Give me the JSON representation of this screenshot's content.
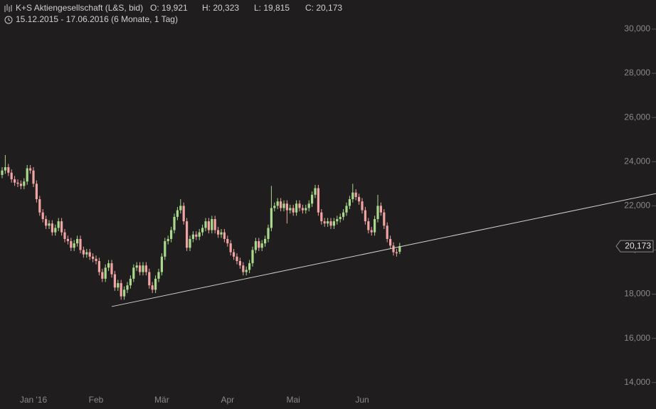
{
  "chart_data": {
    "type": "candlestick",
    "title": "K+S Aktiengesellschaft (L&S, bid)",
    "ohlc_labels": [
      "O: 19,921",
      "H: 20,323",
      "L: 19,815",
      "C: 20,173"
    ],
    "subtitle": "15.12.2015 - 17.06.2016 (6 Monate, 1 Tag)",
    "categories": [
      null,
      null,
      null,
      null,
      null,
      null,
      null,
      null,
      null,
      null,
      "Jan '16",
      null,
      null,
      null,
      null,
      null,
      null,
      null,
      null,
      null,
      null,
      null,
      null,
      null,
      null,
      null,
      null,
      null,
      null,
      null,
      "Feb",
      null,
      null,
      null,
      null,
      null,
      null,
      null,
      null,
      null,
      null,
      null,
      null,
      null,
      null,
      null,
      null,
      null,
      null,
      null,
      null,
      "Mär",
      null,
      null,
      null,
      null,
      null,
      null,
      null,
      null,
      null,
      null,
      null,
      null,
      null,
      null,
      null,
      null,
      null,
      null,
      null,
      null,
      "Apr",
      null,
      null,
      null,
      null,
      null,
      null,
      null,
      null,
      null,
      null,
      null,
      null,
      null,
      null,
      null,
      null,
      null,
      null,
      null,
      null,
      "Mai",
      null,
      null,
      null,
      null,
      null,
      null,
      null,
      null,
      null,
      null,
      null,
      null,
      null,
      null,
      null,
      null,
      null,
      null,
      null,
      null,
      null,
      "Jun",
      null,
      null,
      null,
      null,
      null,
      null,
      null,
      null,
      null,
      null,
      null,
      null
    ],
    "open": [
      23400,
      23600,
      23750,
      23500,
      23200,
      23050,
      23000,
      22900,
      23100,
      23700,
      23600,
      23000,
      22300,
      21700,
      21400,
      21100,
      21200,
      20800,
      21000,
      21300,
      20800,
      20500,
      20400,
      20100,
      20300,
      20500,
      20000,
      19800,
      19900,
      19700,
      19600,
      19500,
      19000,
      18700,
      19200,
      19400,
      18900,
      18300,
      18500,
      17900,
      18200,
      18400,
      18700,
      19200,
      19300,
      19000,
      19300,
      19000,
      18400,
      18200,
      18700,
      19000,
      19700,
      20400,
      20500,
      20900,
      21500,
      21800,
      22000,
      21300,
      20100,
      20500,
      20700,
      20600,
      20800,
      21000,
      21300,
      20900,
      21400,
      20900,
      20700,
      20800,
      20500,
      20300,
      19900,
      19700,
      19500,
      19300,
      19000,
      19100,
      19400,
      20000,
      20400,
      20100,
      20300,
      20500,
      21000,
      21900,
      22000,
      22200,
      21900,
      22100,
      21800,
      21900,
      21700,
      22100,
      21900,
      21800,
      21900,
      22100,
      22500,
      22800,
      21700,
      21300,
      21200,
      21300,
      21100,
      21300,
      21400,
      21500,
      21700,
      22000,
      22300,
      22600,
      22400,
      22200,
      21800,
      21300,
      20900,
      20800,
      21400,
      22000,
      21700,
      21100,
      20500,
      20200,
      19900,
      19921
    ],
    "high": [
      23750,
      24300,
      23900,
      23650,
      23350,
      23200,
      23150,
      23250,
      23850,
      23850,
      23750,
      23150,
      22450,
      21850,
      21550,
      21350,
      21350,
      21150,
      21450,
      21450,
      20950,
      20650,
      20550,
      20450,
      20650,
      20650,
      20150,
      20050,
      20050,
      19850,
      19750,
      19650,
      19150,
      19350,
      19550,
      19550,
      19050,
      18650,
      18650,
      18350,
      18550,
      18850,
      19350,
      19450,
      19450,
      19450,
      19450,
      19150,
      18550,
      18850,
      19150,
      19850,
      20550,
      20650,
      21050,
      21650,
      21950,
      22300,
      22150,
      21450,
      20650,
      20850,
      20850,
      20950,
      21150,
      21450,
      21450,
      21550,
      21550,
      21050,
      20950,
      20950,
      20650,
      20450,
      20050,
      19850,
      19650,
      19450,
      19250,
      19550,
      20150,
      20550,
      20550,
      20450,
      20650,
      21150,
      22900,
      22150,
      22350,
      22350,
      22250,
      22250,
      22050,
      22050,
      22250,
      22250,
      22050,
      22050,
      22250,
      22650,
      22950,
      22950,
      21850,
      21450,
      21450,
      21450,
      21450,
      21550,
      21650,
      21850,
      22150,
      22450,
      23000,
      22750,
      22550,
      22350,
      21950,
      21450,
      21050,
      21550,
      22500,
      22150,
      21850,
      21250,
      20650,
      20350,
      20050,
      20323
    ],
    "low": [
      23250,
      23450,
      23350,
      23050,
      22900,
      22850,
      22750,
      22750,
      22950,
      23450,
      22850,
      22150,
      21550,
      21250,
      20950,
      20950,
      20650,
      20650,
      20850,
      20650,
      20350,
      20250,
      19950,
      19950,
      20150,
      19850,
      19650,
      19650,
      19550,
      19450,
      19350,
      18850,
      18550,
      18550,
      19050,
      18750,
      18150,
      18150,
      17750,
      17750,
      18050,
      18250,
      18550,
      19050,
      18850,
      18850,
      18850,
      18250,
      18050,
      18050,
      18550,
      18850,
      19550,
      20250,
      20350,
      20750,
      21350,
      21650,
      21150,
      19950,
      19950,
      20350,
      20450,
      20450,
      20650,
      20850,
      20750,
      20750,
      20750,
      20550,
      20550,
      20350,
      20150,
      19750,
      19550,
      19350,
      19150,
      18850,
      18850,
      18950,
      19250,
      19850,
      19950,
      19950,
      20150,
      20350,
      20850,
      21750,
      21850,
      21750,
      21750,
      21200,
      21650,
      21550,
      21550,
      21750,
      21650,
      21650,
      21750,
      21950,
      22350,
      21550,
      21150,
      21050,
      21050,
      20950,
      20950,
      21150,
      21250,
      21350,
      21550,
      21850,
      22150,
      22250,
      22050,
      21650,
      21150,
      20750,
      20650,
      20650,
      21250,
      21550,
      20950,
      20350,
      20050,
      19750,
      19700,
      19815
    ],
    "close": [
      23600,
      23750,
      23500,
      23200,
      23050,
      23000,
      22900,
      23100,
      23700,
      23600,
      23000,
      22300,
      21700,
      21400,
      21100,
      21200,
      20800,
      21000,
      21300,
      20800,
      20500,
      20400,
      20100,
      20300,
      20500,
      20000,
      19800,
      19900,
      19700,
      19600,
      19500,
      19000,
      18700,
      19200,
      19400,
      18900,
      18300,
      18500,
      17900,
      18200,
      18400,
      18700,
      19200,
      19300,
      19000,
      19300,
      19000,
      18400,
      18200,
      18700,
      19000,
      19700,
      20400,
      20500,
      20900,
      21500,
      21800,
      22000,
      21300,
      20100,
      20500,
      20700,
      20600,
      20800,
      21000,
      21300,
      20900,
      21400,
      20900,
      20700,
      20800,
      20500,
      20300,
      19900,
      19700,
      19500,
      19300,
      19000,
      19100,
      19400,
      20000,
      20400,
      20100,
      20300,
      20500,
      21000,
      21900,
      22000,
      22200,
      21900,
      22100,
      21800,
      21900,
      21700,
      22100,
      21900,
      21800,
      21900,
      22100,
      22500,
      22800,
      21700,
      21300,
      21200,
      21300,
      21100,
      21300,
      21400,
      21500,
      21700,
      22000,
      22300,
      22600,
      22400,
      22200,
      21800,
      21300,
      20900,
      20800,
      21400,
      22000,
      21700,
      21100,
      20500,
      20200,
      19900,
      19850,
      20173
    ],
    "up_color": "#a9d98d",
    "down_color": "#f2a3a3",
    "ylim": [
      12800,
      31320
    ],
    "yticks": [
      {
        "value": 14000,
        "label": "14,000"
      },
      {
        "value": 16000,
        "label": "16,000"
      },
      {
        "value": 18000,
        "label": "18,000"
      },
      {
        "value": 20000,
        "label": "20,000"
      },
      {
        "value": 22000,
        "label": "22,000"
      },
      {
        "value": 24000,
        "label": "24,000"
      },
      {
        "value": 26000,
        "label": "26,000"
      },
      {
        "value": 28000,
        "label": "28,000"
      },
      {
        "value": 30000,
        "label": "30,000"
      }
    ],
    "trendline": {
      "x": [
        35,
        209
      ],
      "y": [
        17440,
        22560
      ]
    },
    "last_price": {
      "value": 20173,
      "label": "20,173"
    }
  }
}
